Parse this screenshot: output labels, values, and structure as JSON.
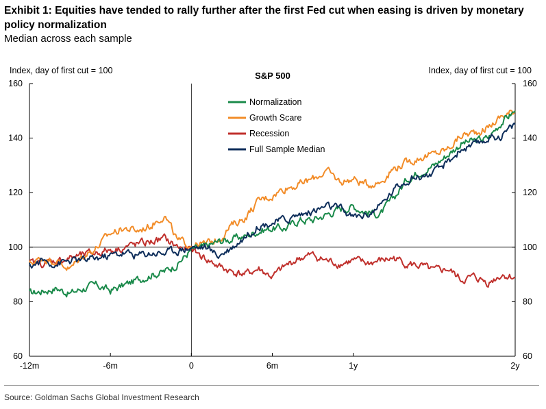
{
  "title": "Exhibit 1: Equities have tended to rally further after the first Fed cut when easing is driven by monetary policy normalization",
  "subtitle": "Median across each sample",
  "source": "Source: Goldman Sachs Global Investment Research",
  "colors": {
    "normalization": "#1a8a4a",
    "growth_scare": "#f28c28",
    "recession": "#c0302c",
    "full_sample": "#0d2d5a"
  },
  "chart_data": {
    "type": "line",
    "title": "S&P 500",
    "ylabel_left": "Index, day of first cut = 100",
    "ylabel_right": "Index, day of first cut = 100",
    "ylim": [
      60,
      160
    ],
    "yticks": [
      60,
      80,
      100,
      120,
      140,
      160
    ],
    "xlim": [
      -12,
      24
    ],
    "x_unit": "months relative to first cut",
    "xticks": [
      {
        "value": -12,
        "label": "-12m"
      },
      {
        "value": -6,
        "label": "-6m"
      },
      {
        "value": 0,
        "label": "0"
      },
      {
        "value": 6,
        "label": "6m"
      },
      {
        "value": 12,
        "label": "1y"
      },
      {
        "value": 24,
        "label": "2y"
      }
    ],
    "reference_lines": {
      "x": 0,
      "y": 100
    },
    "legend_position": "top-center",
    "series": [
      {
        "name": "Normalization",
        "color_key": "normalization",
        "x": [
          -12,
          -11,
          -10,
          -9,
          -8,
          -7,
          -6,
          -5,
          -4,
          -3,
          -2,
          -1,
          0,
          1,
          2,
          3,
          4,
          5,
          6,
          7,
          8,
          9,
          10,
          11,
          12,
          13,
          14,
          15,
          16,
          17,
          18,
          19,
          20,
          21,
          22,
          23,
          24
        ],
        "y": [
          83,
          84,
          85,
          83,
          85,
          86,
          84,
          86,
          88,
          90,
          91,
          94,
          99,
          100,
          102,
          103,
          104,
          106,
          107,
          107,
          110,
          110,
          112,
          114,
          115,
          113,
          112,
          118,
          125,
          128,
          130,
          134,
          138,
          139,
          140,
          146,
          150
        ]
      },
      {
        "name": "Growth Scare",
        "color_key": "growth_scare",
        "x": [
          -12,
          -11,
          -10,
          -9,
          -8,
          -7,
          -6,
          -5,
          -4,
          -3,
          -2,
          -1,
          0,
          1,
          2,
          3,
          4,
          5,
          6,
          7,
          8,
          9,
          10,
          11,
          12,
          13,
          14,
          15,
          16,
          17,
          18,
          19,
          20,
          21,
          22,
          23,
          24
        ],
        "y": [
          94,
          96,
          95,
          92,
          97,
          100,
          105,
          107,
          106,
          108,
          112,
          102,
          101,
          101,
          103,
          108,
          111,
          117,
          119,
          122,
          123,
          125,
          128,
          124,
          125,
          123,
          124,
          129,
          131,
          133,
          134,
          136,
          141,
          142,
          144,
          148,
          150
        ]
      },
      {
        "name": "Recession",
        "color_key": "recession",
        "x": [
          -12,
          -11,
          -10,
          -9,
          -8,
          -7,
          -6,
          -5,
          -4,
          -3,
          -2,
          -1,
          0,
          1,
          2,
          3,
          4,
          5,
          6,
          7,
          8,
          9,
          10,
          11,
          12,
          13,
          14,
          15,
          16,
          17,
          18,
          19,
          20,
          21,
          22,
          23,
          24
        ],
        "y": [
          94,
          94,
          95,
          96,
          97,
          98,
          99,
          100,
          101,
          102,
          103,
          100,
          99,
          96,
          93,
          91,
          90,
          92,
          89,
          93,
          96,
          97,
          95,
          94,
          95,
          94,
          95,
          96,
          94,
          93,
          91,
          92,
          88,
          89,
          87,
          90,
          89
        ]
      },
      {
        "name": "Full Sample Median",
        "color_key": "full_sample",
        "x": [
          -12,
          -11,
          -10,
          -9,
          -8,
          -7,
          -6,
          -5,
          -4,
          -3,
          -2,
          -1,
          0,
          1,
          2,
          3,
          4,
          5,
          6,
          7,
          8,
          9,
          10,
          11,
          12,
          13,
          14,
          15,
          16,
          17,
          18,
          19,
          20,
          21,
          22,
          23,
          24
        ],
        "y": [
          93,
          95,
          94,
          95,
          95,
          96,
          97,
          98,
          97,
          98,
          98,
          99,
          100,
          100,
          97,
          100,
          104,
          108,
          109,
          110,
          112,
          113,
          115,
          114,
          111,
          112,
          115,
          121,
          125,
          126,
          127,
          131,
          136,
          137,
          140,
          141,
          145
        ]
      }
    ]
  }
}
